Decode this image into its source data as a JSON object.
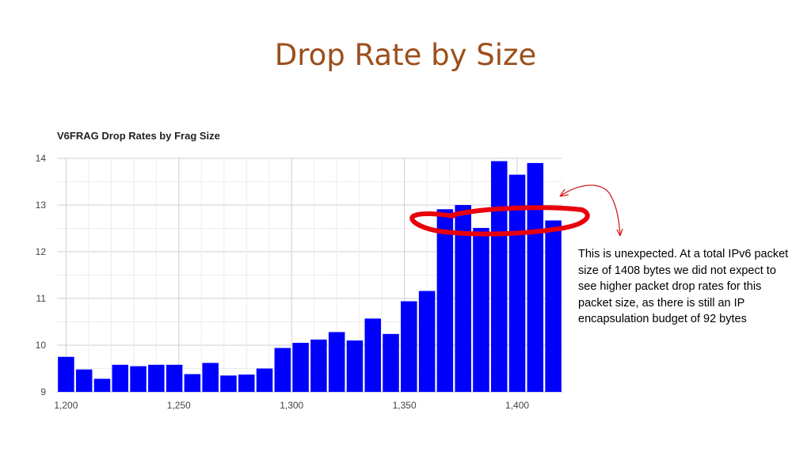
{
  "slide": {
    "title": "Drop Rate by Size",
    "annotation": "This is unexpected. At a total IPv6 packet size of 1408 bytes we did not expect to see higher packet drop rates for this packet size, as there is still an IP encapsulation budget of 92 bytes"
  },
  "chart_data": {
    "type": "bar",
    "title": "V6FRAG Drop Rates by Frag Size",
    "xlabel": "",
    "ylabel": "",
    "x": [
      1200,
      1208,
      1216,
      1224,
      1232,
      1240,
      1248,
      1256,
      1264,
      1272,
      1280,
      1288,
      1296,
      1304,
      1312,
      1320,
      1328,
      1336,
      1344,
      1352,
      1360,
      1368,
      1376,
      1384,
      1392,
      1400,
      1408,
      1416
    ],
    "values": [
      9.75,
      9.48,
      9.28,
      9.58,
      9.55,
      9.58,
      9.58,
      9.38,
      9.62,
      9.35,
      9.37,
      9.5,
      9.94,
      10.05,
      10.12,
      10.28,
      10.1,
      10.57,
      10.24,
      10.94,
      11.16,
      12.91,
      13.0,
      12.51,
      13.94,
      13.65,
      13.9,
      12.67
    ],
    "ylim": [
      9,
      14
    ],
    "xlim": [
      1196,
      1420
    ],
    "yticks": [
      "9",
      "10",
      "11",
      "12",
      "13",
      "14"
    ],
    "xticks": [
      "1,200",
      "1,250",
      "1,300",
      "1,350",
      "1,400"
    ],
    "grid": true,
    "bar_color": "#0000ff",
    "highlight_color": "#e8000b",
    "arrow_color": "#d42020"
  }
}
